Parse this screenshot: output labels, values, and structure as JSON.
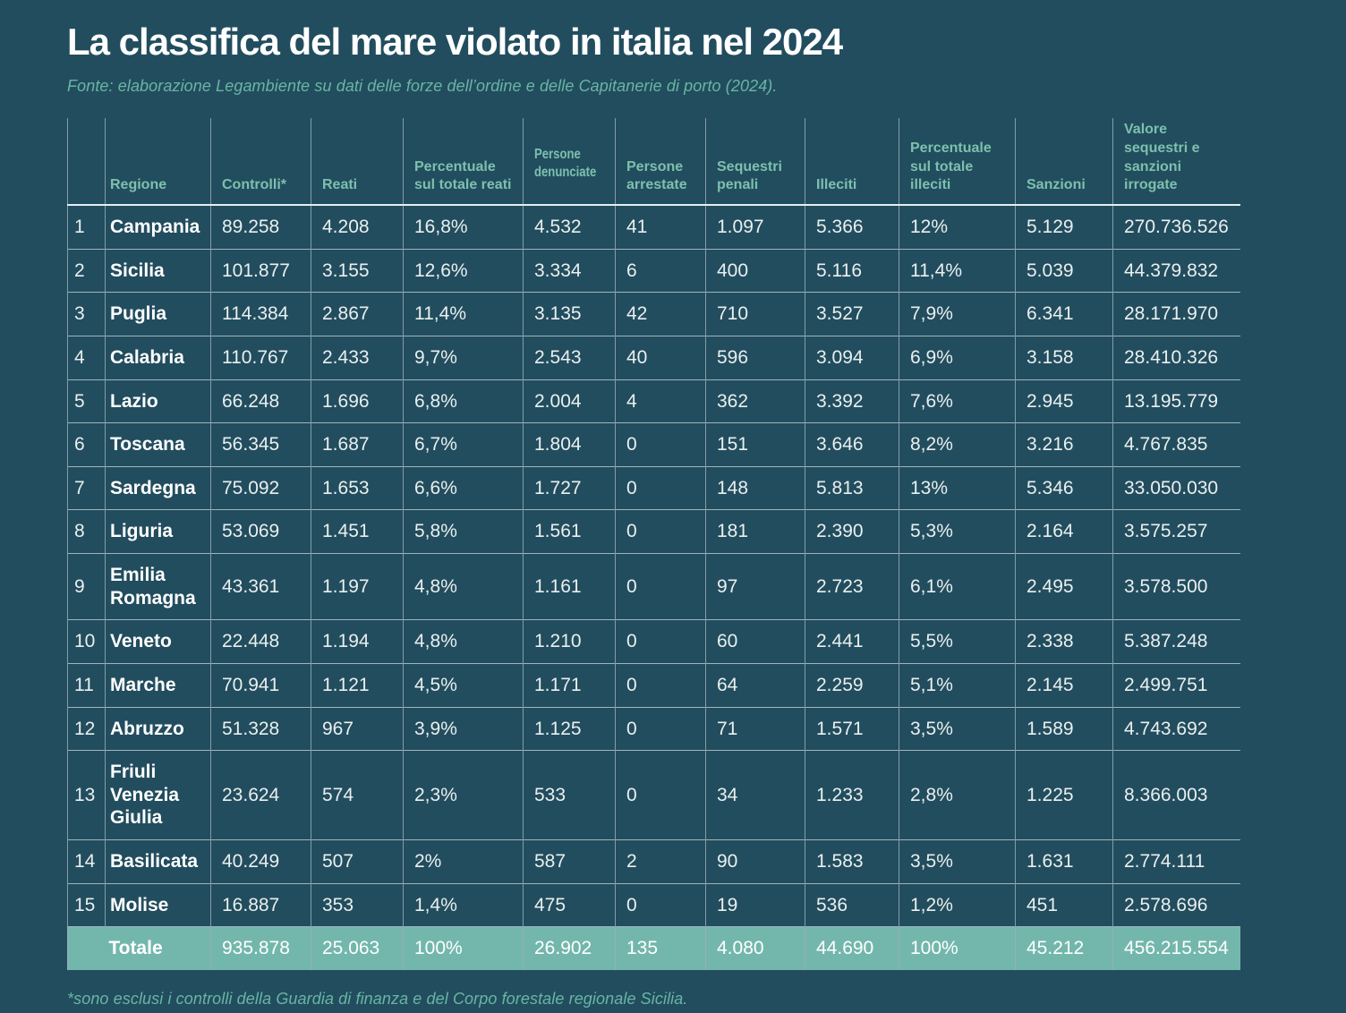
{
  "page": {
    "title": "La classifica del mare violato in italia nel 2024",
    "subtitle": "Fonte: elaborazione Legambiente su dati delle forze dell’ordine e delle Capitanerie di porto (2024).",
    "footnote": "*sono esclusi i controlli della Guardia di finanza e del Corpo forestale regionale Sicilia."
  },
  "colors": {
    "background": "#224d5e",
    "header_text": "#7dc0ae",
    "note_text": "#69b5a5",
    "total_row_bg": "#73b7ac",
    "cell_text": "#e9efef"
  },
  "chart_data": {
    "type": "table",
    "title": "La classifica del mare violato in italia nel 2024",
    "columns": [
      "",
      "Regione",
      "Controlli*",
      "Reati",
      "Percentuale sul totale reati",
      "Persone denunciate",
      "Persone arrestate",
      "Sequestri penali",
      "Illeciti",
      "Percentuale sul totale illeciti",
      "Sanzioni",
      "Valore sequestri e sanzioni irrogate"
    ],
    "rows": [
      {
        "rank": "1",
        "regione": "Campania",
        "values": [
          "89.258",
          "4.208",
          "16,8%",
          "4.532",
          "41",
          "1.097",
          "5.366",
          "12%",
          "5.129",
          "270.736.526"
        ]
      },
      {
        "rank": "2",
        "regione": "Sicilia",
        "values": [
          "101.877",
          "3.155",
          "12,6%",
          "3.334",
          "6",
          "400",
          "5.116",
          "11,4%",
          "5.039",
          "44.379.832"
        ]
      },
      {
        "rank": "3",
        "regione": "Puglia",
        "values": [
          "114.384",
          "2.867",
          "11,4%",
          "3.135",
          "42",
          "710",
          "3.527",
          "7,9%",
          "6.341",
          "28.171.970"
        ]
      },
      {
        "rank": "4",
        "regione": "Calabria",
        "values": [
          "110.767",
          "2.433",
          "9,7%",
          "2.543",
          "40",
          "596",
          "3.094",
          "6,9%",
          "3.158",
          "28.410.326"
        ]
      },
      {
        "rank": "5",
        "regione": "Lazio",
        "values": [
          "66.248",
          "1.696",
          "6,8%",
          "2.004",
          "4",
          "362",
          "3.392",
          "7,6%",
          "2.945",
          "13.195.779"
        ]
      },
      {
        "rank": "6",
        "regione": "Toscana",
        "values": [
          "56.345",
          "1.687",
          "6,7%",
          "1.804",
          "0",
          "151",
          "3.646",
          "8,2%",
          "3.216",
          "4.767.835"
        ]
      },
      {
        "rank": "7",
        "regione": "Sardegna",
        "values": [
          "75.092",
          "1.653",
          "6,6%",
          "1.727",
          "0",
          "148",
          "5.813",
          "13%",
          "5.346",
          "33.050.030"
        ]
      },
      {
        "rank": "8",
        "regione": "Liguria",
        "values": [
          "53.069",
          "1.451",
          "5,8%",
          "1.561",
          "0",
          "181",
          "2.390",
          "5,3%",
          "2.164",
          "3.575.257"
        ]
      },
      {
        "rank": "9",
        "regione": "Emilia Romagna",
        "values": [
          "43.361",
          "1.197",
          "4,8%",
          "1.161",
          "0",
          "97",
          "2.723",
          "6,1%",
          "2.495",
          "3.578.500"
        ]
      },
      {
        "rank": "10",
        "regione": "Veneto",
        "values": [
          "22.448",
          "1.194",
          "4,8%",
          "1.210",
          "0",
          "60",
          "2.441",
          "5,5%",
          "2.338",
          "5.387.248"
        ]
      },
      {
        "rank": "11",
        "regione": "Marche",
        "values": [
          "70.941",
          "1.121",
          "4,5%",
          "1.171",
          "0",
          "64",
          "2.259",
          "5,1%",
          "2.145",
          "2.499.751"
        ]
      },
      {
        "rank": "12",
        "regione": "Abruzzo",
        "values": [
          "51.328",
          "967",
          "3,9%",
          "1.125",
          "0",
          "71",
          "1.571",
          "3,5%",
          "1.589",
          "4.743.692"
        ]
      },
      {
        "rank": "13",
        "regione": "Friuli Venezia Giulia",
        "values": [
          "23.624",
          "574",
          "2,3%",
          "533",
          "0",
          "34",
          "1.233",
          "2,8%",
          "1.225",
          "8.366.003"
        ]
      },
      {
        "rank": "14",
        "regione": "Basilicata",
        "values": [
          "40.249",
          "507",
          "2%",
          "587",
          "2",
          "90",
          "1.583",
          "3,5%",
          "1.631",
          "2.774.111"
        ]
      },
      {
        "rank": "15",
        "regione": "Molise",
        "values": [
          "16.887",
          "353",
          "1,4%",
          "475",
          "0",
          "19",
          "536",
          "1,2%",
          "451",
          "2.578.696"
        ]
      }
    ],
    "total": {
      "label": "Totale",
      "values": [
        "935.878",
        "25.063",
        "100%",
        "26.902",
        "135",
        "4.080",
        "44.690",
        "100%",
        "45.212",
        "456.215.554"
      ]
    }
  }
}
